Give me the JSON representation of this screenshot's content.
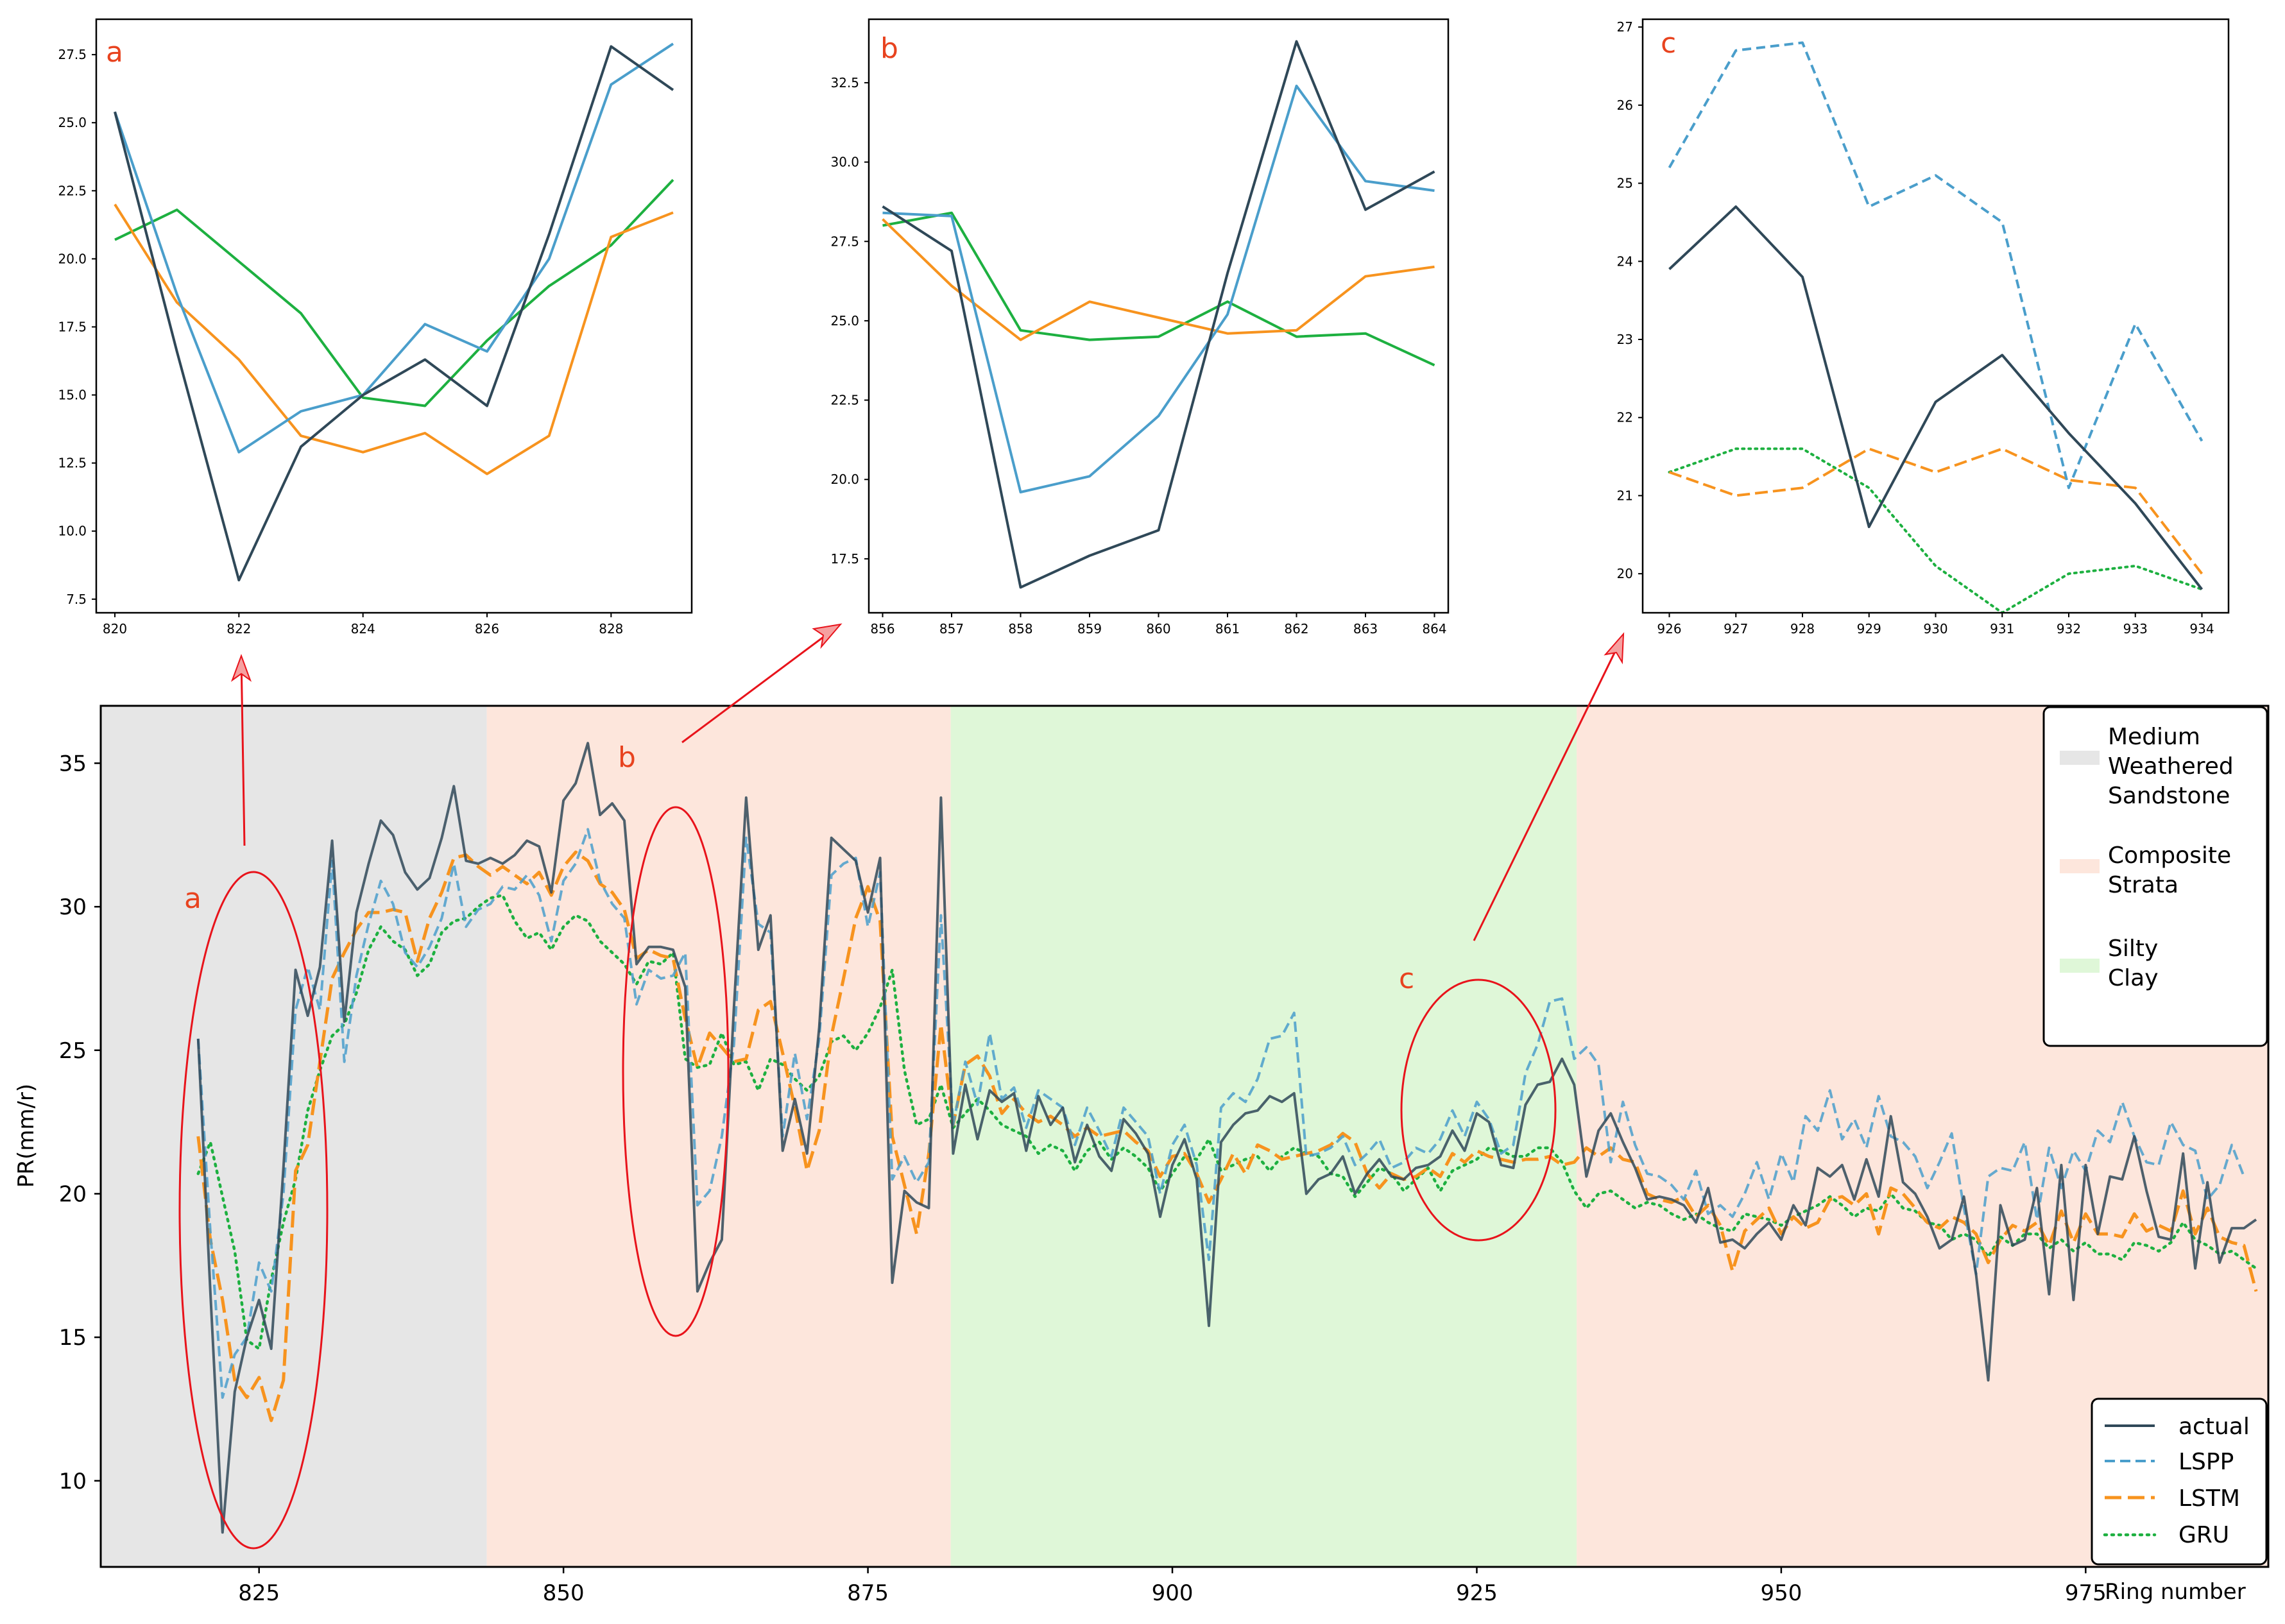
{
  "colors": {
    "actual": "#2f4858",
    "lspp": "#4a9ecb",
    "lstm": "#f7931e",
    "gru": "#1db040",
    "annotation": "#e8131b",
    "region_medium_weathered_sandstone": "#e6e6e6",
    "region_composite_strata": "#fde6dc",
    "region_silty_clay": "#dff7d8"
  },
  "chart_data": [
    {
      "id": "a",
      "type": "line",
      "panel_label": "a",
      "xlim": [
        819.7,
        829.3
      ],
      "ylim": [
        7.0,
        28.8
      ],
      "x_ticks": [
        "820",
        "822",
        "824",
        "826",
        "828"
      ],
      "y_ticks": [
        "7.5",
        "10.0",
        "12.5",
        "15.0",
        "17.5",
        "20.0",
        "22.5",
        "25.0",
        "27.5"
      ],
      "x": [
        820,
        821,
        822,
        823,
        824,
        825,
        826,
        827,
        828,
        829
      ],
      "series": [
        {
          "name": "actual",
          "values": [
            25.4,
            16.6,
            8.2,
            13.1,
            15.0,
            16.3,
            14.6,
            20.9,
            27.8,
            26.2
          ]
        },
        {
          "name": "LSPP",
          "values": [
            25.4,
            18.7,
            12.9,
            14.4,
            15.0,
            17.6,
            16.6,
            20.0,
            26.4,
            27.9
          ]
        },
        {
          "name": "LSTM",
          "values": [
            22.0,
            18.4,
            16.3,
            13.5,
            12.9,
            13.6,
            12.1,
            13.5,
            20.8,
            21.7
          ]
        },
        {
          "name": "GRU",
          "values": [
            20.7,
            21.8,
            19.9,
            18.0,
            14.9,
            14.6,
            17.0,
            19.0,
            20.5,
            22.9
          ]
        }
      ]
    },
    {
      "id": "b",
      "type": "line",
      "panel_label": "b",
      "xlim": [
        855.8,
        864.2
      ],
      "ylim": [
        15.8,
        34.5
      ],
      "x_ticks": [
        "856",
        "857",
        "858",
        "859",
        "860",
        "861",
        "862",
        "863",
        "864"
      ],
      "y_ticks": [
        "17.5",
        "20.0",
        "22.5",
        "25.0",
        "27.5",
        "30.0",
        "32.5"
      ],
      "x": [
        856,
        857,
        858,
        859,
        860,
        861,
        862,
        863,
        864
      ],
      "series": [
        {
          "name": "actual",
          "values": [
            28.6,
            27.2,
            16.6,
            17.6,
            18.4,
            26.5,
            33.8,
            28.5,
            29.7
          ]
        },
        {
          "name": "LSPP",
          "values": [
            28.4,
            28.3,
            19.6,
            20.1,
            22.0,
            25.2,
            32.4,
            29.4,
            29.1
          ]
        },
        {
          "name": "LSTM",
          "values": [
            28.2,
            26.1,
            24.4,
            25.6,
            25.1,
            24.6,
            24.7,
            26.4,
            26.7
          ]
        },
        {
          "name": "GRU",
          "values": [
            28.0,
            28.4,
            24.7,
            24.4,
            24.5,
            25.6,
            24.5,
            24.6,
            23.6
          ]
        }
      ]
    },
    {
      "id": "c",
      "type": "line",
      "panel_label": "c",
      "xlim": [
        925.6,
        934.4
      ],
      "ylim": [
        19.5,
        27.1
      ],
      "x_ticks": [
        "926",
        "927",
        "928",
        "929",
        "930",
        "931",
        "932",
        "933",
        "934"
      ],
      "y_ticks": [
        "20",
        "21",
        "22",
        "23",
        "24",
        "25",
        "26",
        "27"
      ],
      "x": [
        926,
        927,
        928,
        929,
        930,
        931,
        932,
        933,
        934
      ],
      "series": [
        {
          "name": "actual",
          "values": [
            23.9,
            24.7,
            23.8,
            20.6,
            22.2,
            22.8,
            21.8,
            20.9,
            19.8
          ]
        },
        {
          "name": "LSPP",
          "values": [
            25.2,
            26.7,
            26.8,
            24.7,
            25.1,
            24.5,
            21.1,
            23.2,
            21.7
          ]
        },
        {
          "name": "LSTM",
          "values": [
            21.3,
            21.0,
            21.1,
            21.6,
            21.3,
            21.6,
            21.2,
            21.1,
            20.0
          ]
        },
        {
          "name": "GRU",
          "values": [
            21.3,
            21.6,
            21.6,
            21.1,
            20.1,
            19.5,
            20.0,
            20.1,
            19.8
          ]
        }
      ]
    },
    {
      "id": "main",
      "type": "line",
      "ylabel": "PR(mm/r)",
      "xlabel": "Ring number",
      "xlim": [
        812,
        990
      ],
      "ylim": [
        7.0,
        37.0
      ],
      "x_ticks": [
        "825",
        "850",
        "875",
        "900",
        "925",
        "950",
        "975"
      ],
      "y_ticks": [
        "10",
        "15",
        "20",
        "25",
        "30",
        "35"
      ],
      "regions": [
        {
          "from": 812.0,
          "to": 843.7,
          "name": "Medium Weathered Sandstone"
        },
        {
          "from": 843.7,
          "to": 881.8,
          "name": "Composite Strata"
        },
        {
          "from": 881.8,
          "to": 933.2,
          "name": "Silty Clay"
        },
        {
          "from": 933.2,
          "to": 990.0,
          "name": "Composite Strata"
        }
      ],
      "legend_regions": [
        {
          "label": "Medium Weathered Sandstone",
          "lines": [
            "Medium",
            "Weathered",
            "Sandstone"
          ]
        },
        {
          "label": "Composite Strata",
          "lines": [
            "Composite",
            "Strata"
          ]
        },
        {
          "label": "Silty Clay",
          "lines": [
            "Silty",
            "Clay"
          ]
        }
      ],
      "legend_series": [
        "actual",
        "LSPP",
        "LSTM",
        "GRU"
      ],
      "x_start": 820,
      "series": [
        {
          "name": "actual",
          "values": [
            25.4,
            16.6,
            8.2,
            13.1,
            15.0,
            16.3,
            14.6,
            20.9,
            27.8,
            26.2,
            27.9,
            32.3,
            26.0,
            29.8,
            31.5,
            33.0,
            32.5,
            31.2,
            30.6,
            31.0,
            32.4,
            34.2,
            31.6,
            31.5,
            31.7,
            31.5,
            31.8,
            32.3,
            32.1,
            30.5,
            33.7,
            34.3,
            35.7,
            33.2,
            33.6,
            33.0,
            28.0,
            28.6,
            28.6,
            28.5,
            27.2,
            16.6,
            17.6,
            18.4,
            26.5,
            33.8,
            28.5,
            29.7,
            21.5,
            23.3,
            21.4,
            25.8,
            32.4,
            32.0,
            31.6,
            29.8,
            31.7,
            16.9,
            20.1,
            19.7,
            19.5,
            33.8,
            21.4,
            23.8,
            21.9,
            23.6,
            23.2,
            23.5,
            21.5,
            23.4,
            22.4,
            23.0,
            21.1,
            22.4,
            21.3,
            20.8,
            22.6,
            22.1,
            21.4,
            19.2,
            21.0,
            21.9,
            20.5,
            15.4,
            21.8,
            22.4,
            22.8,
            22.9,
            23.4,
            23.2,
            23.5,
            20.0,
            20.5,
            20.7,
            21.3,
            20.0,
            20.7,
            21.2,
            20.6,
            20.5,
            20.9,
            21.0,
            21.3,
            22.2,
            21.5,
            22.8,
            22.5,
            21.0,
            20.9,
            23.1,
            23.8,
            23.9,
            24.7,
            23.8,
            20.6,
            22.2,
            22.8,
            21.8,
            20.9,
            19.8,
            19.9,
            19.8,
            19.6,
            19.0,
            20.2,
            18.3,
            18.4,
            18.1,
            18.6,
            19.0,
            18.4,
            19.6,
            18.9,
            20.9,
            20.6,
            21.0,
            19.8,
            21.2,
            19.9,
            22.7,
            20.4,
            20.0,
            19.2,
            18.1,
            18.4,
            19.9,
            17.2,
            13.5,
            19.6,
            18.2,
            18.4,
            20.2,
            16.5,
            21.0,
            16.3,
            21.0,
            18.6,
            20.6,
            20.5,
            22.0,
            20.1,
            18.5,
            18.4,
            21.4,
            17.4,
            20.4,
            17.6,
            18.8,
            18.8,
            19.1
          ]
        },
        {
          "name": "LSPP",
          "values": [
            25.4,
            18.7,
            12.9,
            14.4,
            15.0,
            17.6,
            16.6,
            20.0,
            26.4,
            27.9,
            26.4,
            31.6,
            24.6,
            27.6,
            29.4,
            30.9,
            30.1,
            28.4,
            27.9,
            28.6,
            29.6,
            31.5,
            29.3,
            29.9,
            30.1,
            30.7,
            30.6,
            31.1,
            30.4,
            28.8,
            30.9,
            31.5,
            32.7,
            30.9,
            30.1,
            29.6,
            26.6,
            27.8,
            27.5,
            27.6,
            28.4,
            19.6,
            20.1,
            22.0,
            25.2,
            32.4,
            29.4,
            29.1,
            22.0,
            24.9,
            22.6,
            25.4,
            31.1,
            31.5,
            31.7,
            29.3,
            31.2,
            20.5,
            21.3,
            20.4,
            21.1,
            29.7,
            22.4,
            24.6,
            23.1,
            25.6,
            23.3,
            23.7,
            22.3,
            23.6,
            23.3,
            23.0,
            21.7,
            23.0,
            22.2,
            21.3,
            23.0,
            22.5,
            22.0,
            20.0,
            21.7,
            22.4,
            21.0,
            17.7,
            23.0,
            23.5,
            23.2,
            24.0,
            25.4,
            25.5,
            26.3,
            21.3,
            21.4,
            21.6,
            22.0,
            21.0,
            21.4,
            21.9,
            20.9,
            21.1,
            21.6,
            21.4,
            21.9,
            22.9,
            22.0,
            23.2,
            22.6,
            21.4,
            21.7,
            24.2,
            25.2,
            26.7,
            26.8,
            24.7,
            25.1,
            24.5,
            21.1,
            23.2,
            21.7,
            20.7,
            20.6,
            20.3,
            19.8,
            20.8,
            19.3,
            19.6,
            19.2,
            20.0,
            21.1,
            19.8,
            21.4,
            20.4,
            22.7,
            22.2,
            23.6,
            21.9,
            22.6,
            21.6,
            23.4,
            22.0,
            21.8,
            21.3,
            20.2,
            21.1,
            22.1,
            19.5,
            17.2,
            20.6,
            20.9,
            20.8,
            21.8,
            19.1,
            21.6,
            20.2,
            21.5,
            20.8,
            22.2,
            21.8,
            23.2,
            22.0,
            21.1,
            21.0,
            22.5,
            21.7,
            21.5,
            19.8,
            20.3,
            21.7,
            20.6
          ]
        },
        {
          "name": "LSTM",
          "values": [
            22.0,
            18.4,
            16.3,
            13.5,
            12.9,
            13.6,
            12.1,
            13.5,
            20.8,
            21.7,
            24.6,
            27.5,
            28.4,
            29.2,
            29.8,
            29.8,
            29.9,
            29.8,
            28.1,
            29.6,
            30.5,
            31.7,
            31.8,
            31.4,
            31.1,
            31.4,
            31.1,
            30.8,
            31.2,
            30.4,
            31.4,
            31.9,
            31.6,
            30.8,
            30.5,
            29.9,
            28.2,
            28.5,
            28.3,
            28.2,
            26.1,
            24.4,
            25.6,
            25.1,
            24.6,
            24.7,
            26.4,
            26.7,
            24.9,
            23.0,
            20.8,
            22.2,
            25.5,
            27.5,
            29.6,
            30.7,
            29.5,
            22.0,
            20.3,
            18.6,
            21.4,
            25.9,
            22.4,
            24.5,
            24.8,
            24.1,
            22.8,
            23.3,
            22.8,
            22.5,
            22.7,
            22.4,
            22.0,
            22.3,
            22.0,
            22.1,
            22.2,
            21.8,
            21.5,
            20.6,
            21.3,
            21.4,
            20.7,
            19.7,
            20.5,
            21.4,
            20.7,
            21.7,
            21.5,
            21.2,
            21.3,
            21.4,
            21.5,
            21.7,
            22.1,
            21.8,
            20.7,
            20.2,
            20.7,
            20.5,
            20.6,
            20.9,
            20.6,
            21.4,
            21.1,
            21.5,
            21.3,
            21.2,
            21.1,
            21.2,
            21.2,
            21.3,
            21.0,
            21.1,
            21.6,
            21.3,
            21.6,
            21.2,
            21.1,
            20.0,
            19.8,
            19.7,
            19.9,
            19.2,
            19.6,
            18.9,
            17.3,
            18.7,
            19.1,
            19.5,
            18.6,
            19.2,
            18.8,
            19.0,
            19.8,
            19.9,
            19.6,
            20.0,
            18.6,
            20.2,
            20.0,
            19.5,
            19.0,
            18.8,
            19.2,
            19.0,
            18.6,
            17.6,
            18.4,
            18.9,
            18.7,
            19.0,
            18.2,
            19.4,
            18.3,
            19.3,
            18.6,
            18.6,
            18.5,
            19.3,
            18.7,
            18.9,
            18.7,
            20.1,
            18.6,
            19.5,
            18.5,
            18.3,
            18.2,
            16.6
          ]
        },
        {
          "name": "GRU",
          "values": [
            20.7,
            21.8,
            19.9,
            18.0,
            14.9,
            14.6,
            17.0,
            19.0,
            20.5,
            22.9,
            24.3,
            25.5,
            25.9,
            27.0,
            28.5,
            29.3,
            28.8,
            28.5,
            27.6,
            28.0,
            29.1,
            29.5,
            29.6,
            30.0,
            30.3,
            30.4,
            29.5,
            28.9,
            29.1,
            28.5,
            29.3,
            29.7,
            29.5,
            28.8,
            28.4,
            28.0,
            27.3,
            28.1,
            28.0,
            28.4,
            24.7,
            24.4,
            24.5,
            25.6,
            24.5,
            24.6,
            23.6,
            24.7,
            24.5,
            24.0,
            23.6,
            24.1,
            25.3,
            25.5,
            25.0,
            25.6,
            26.5,
            27.8,
            24.3,
            22.4,
            22.6,
            23.8,
            22.3,
            22.8,
            23.3,
            22.9,
            22.4,
            22.2,
            22.0,
            21.4,
            21.7,
            21.5,
            20.8,
            21.5,
            21.8,
            21.2,
            21.6,
            21.3,
            20.9,
            20.1,
            20.7,
            21.3,
            21.2,
            21.9,
            20.8,
            21.0,
            21.2,
            21.3,
            20.8,
            21.3,
            21.6,
            21.4,
            21.3,
            20.7,
            20.6,
            19.9,
            20.4,
            20.9,
            20.7,
            20.1,
            20.5,
            20.9,
            20.1,
            20.8,
            21.0,
            21.2,
            21.6,
            21.5,
            21.3,
            21.3,
            21.6,
            21.6,
            21.1,
            20.1,
            19.5,
            20.0,
            20.1,
            19.8,
            19.5,
            19.7,
            19.6,
            19.3,
            19.1,
            19.3,
            19.0,
            18.8,
            18.7,
            19.3,
            19.2,
            19.1,
            18.9,
            19.2,
            19.4,
            19.6,
            19.9,
            19.6,
            19.2,
            19.5,
            19.4,
            20.0,
            19.5,
            19.4,
            19.0,
            18.9,
            18.4,
            18.6,
            18.4,
            17.8,
            18.5,
            18.2,
            18.6,
            18.6,
            18.1,
            18.4,
            18.0,
            18.3,
            17.9,
            17.9,
            17.7,
            18.3,
            18.2,
            18.0,
            18.3,
            19.0,
            18.4,
            18.2,
            17.9,
            18.0,
            17.7,
            17.4
          ]
        }
      ],
      "annotations": [
        {
          "label": "a",
          "target": "a"
        },
        {
          "label": "b",
          "target": "b"
        },
        {
          "label": "c",
          "target": "c"
        }
      ]
    }
  ]
}
